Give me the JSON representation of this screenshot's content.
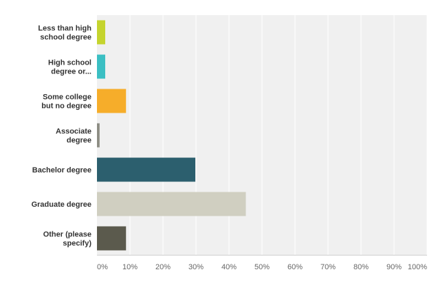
{
  "chart_data": {
    "type": "bar",
    "orientation": "horizontal",
    "categories": [
      [
        "Less than high",
        "school degree"
      ],
      [
        "High school",
        "degree or..."
      ],
      [
        "Some college",
        "but no degree"
      ],
      [
        "Associate",
        "degree"
      ],
      [
        "Bachelor degree"
      ],
      [
        "Graduate degree"
      ],
      [
        "Other (please",
        "specify)"
      ]
    ],
    "values": [
      2.5,
      2.5,
      8.8,
      0.8,
      29.8,
      45.1,
      8.8
    ],
    "colors": [
      "#c5d42e",
      "#3bbfc3",
      "#f6ad2a",
      "#8c8c83",
      "#2c5f6e",
      "#d0cfc1",
      "#5b5a4d"
    ],
    "xlim": [
      0,
      100
    ],
    "xticks": [
      "0%",
      "10%",
      "20%",
      "30%",
      "40%",
      "50%",
      "60%",
      "70%",
      "80%",
      "90%",
      "100%"
    ],
    "grid": true,
    "plot_background": "#f0f0f0",
    "grid_color": "#ffffff",
    "axis_color": "#cfcfcf"
  }
}
